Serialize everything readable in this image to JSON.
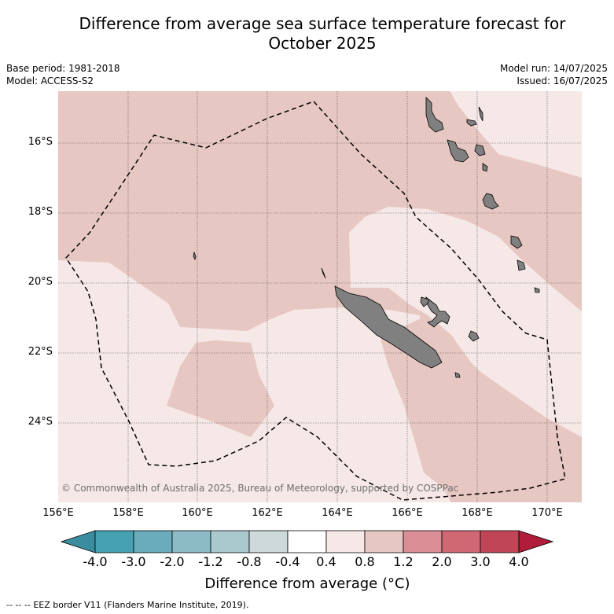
{
  "header": {
    "title_line1": "Difference from average sea surface temperature forecast for",
    "title_line2": "October 2025",
    "base_period": "Base period: 1981-2018",
    "model": "Model: ACCESS-S2",
    "model_run": "Model run: 14/07/2025",
    "issued": "Issued: 16/07/2025"
  },
  "map": {
    "region": "New Caledonia",
    "lon_ticks": [
      "156°E",
      "158°E",
      "160°E",
      "162°E",
      "164°E",
      "166°E",
      "168°E",
      "170°E"
    ],
    "lat_ticks": [
      "16°S",
      "18°S",
      "20°S",
      "22°S",
      "24°S"
    ],
    "credit": "© Commonwealth of Australia 2025, Bureau of Meteorology, supported by COSPPac",
    "colors": {
      "anomaly_0_4_to_0_8": "#f5e8e6",
      "anomaly_0_8_to_1_2": "#e7c7c1",
      "land": "#808080",
      "eez_border": "#000000"
    }
  },
  "colorbar": {
    "title": "Difference from average (°C)",
    "labels": [
      "-4.0",
      "-3.0",
      "-2.0",
      "-1.2",
      "-0.8",
      "-0.4",
      "0.4",
      "0.8",
      "1.2",
      "2.0",
      "3.0",
      "4.0"
    ],
    "colors": [
      "#45a0b2",
      "#6aacbb",
      "#8cbac5",
      "#a9c9ce",
      "#cdd9da",
      "#ffffff",
      "#f5e8e6",
      "#e7c7c1",
      "#d98d95",
      "#cf6873",
      "#c04556"
    ],
    "extend_low_color": "#3a8c9e",
    "extend_high_color": "#b01c3a"
  },
  "footer": {
    "legend_dash": "--  --  --",
    "eez_text": "EEZ border V11 (Flanders Marine Institute, 2019)."
  }
}
